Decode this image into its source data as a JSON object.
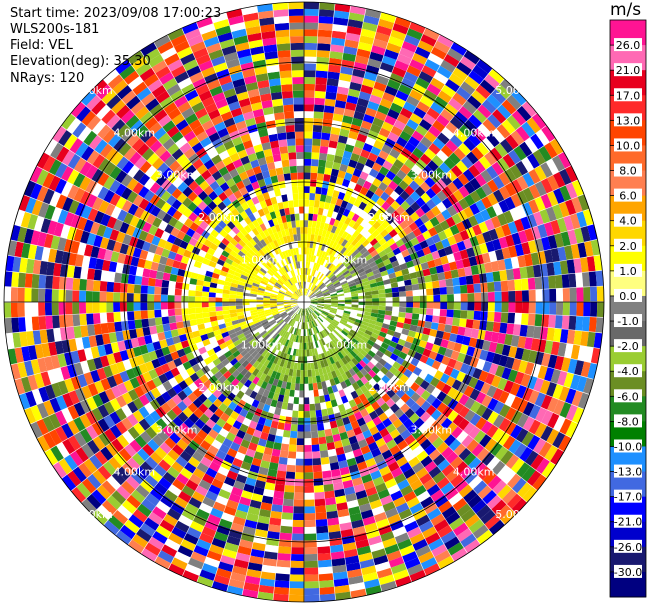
{
  "header": {
    "start_time": "Start time: 2023/09/08 17:00:23",
    "instrument": "WLS200s-181",
    "field": "Field: VEL",
    "elevation": "Elevation(deg): 35.30",
    "nrays": "NRays: 120"
  },
  "colorbar": {
    "unit": "m/s",
    "labels": [
      "26.0",
      "21.0",
      "17.0",
      "13.0",
      "10.0",
      "8.0",
      "6.0",
      "4.0",
      "2.0",
      "1.0",
      "0.0",
      "-1.0",
      "-2.0",
      "-4.0",
      "-6.0",
      "-8.0",
      "-10.0",
      "-13.0",
      "-17.0",
      "-21.0",
      "-26.0",
      "-30.0"
    ],
    "colors": [
      "#ff1493",
      "#ff69b4",
      "#e8001e",
      "#ff2a2a",
      "#ff4500",
      "#ff6a2a",
      "#ff7f50",
      "#ffa500",
      "#ffd700",
      "#ffff00",
      "#ffff80",
      "#808080",
      "#696969",
      "#9acd32",
      "#6b8e23",
      "#228b22",
      "#008000",
      "#1e90ff",
      "#4169e1",
      "#0000ff",
      "#0000cd",
      "#191970",
      "#000080"
    ]
  },
  "chart_data": {
    "type": "ppi",
    "field": "VEL",
    "units": "m/s",
    "elevation_deg": 35.3,
    "n_rays": 120,
    "range_ring_labels": [
      "1.00km",
      "2.00km",
      "3.00km",
      "4.00km",
      "5.00km"
    ],
    "color_range": [
      -30.0,
      26.0
    ]
  }
}
